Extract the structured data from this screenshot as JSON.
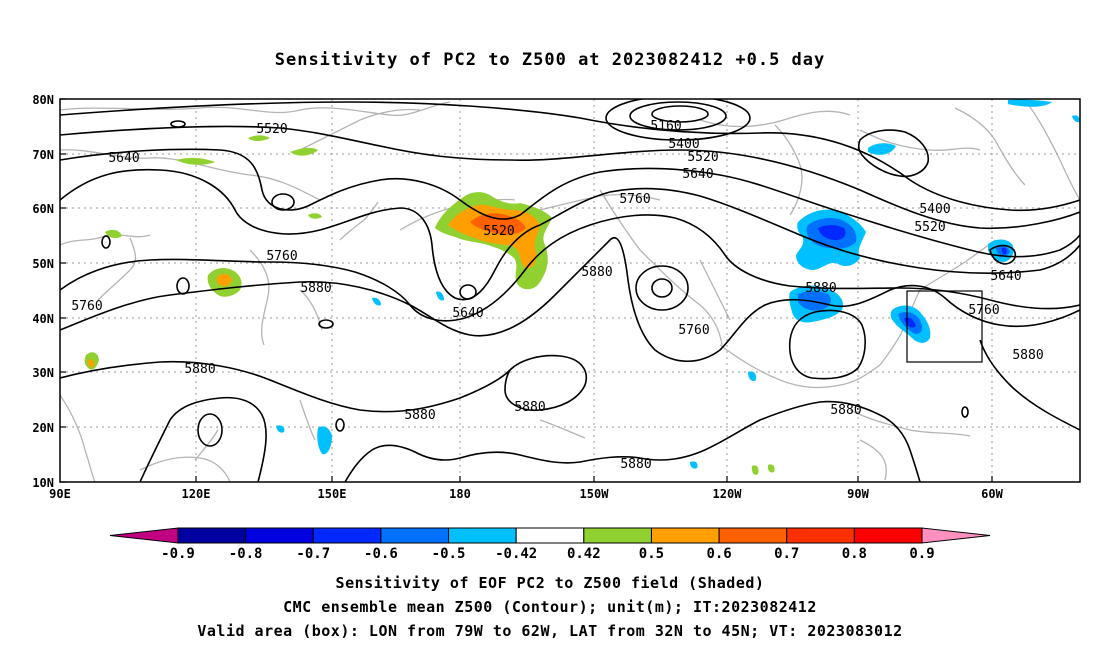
{
  "title": "Sensitivity of PC2 to Z500 at 2023082412 +0.5 day",
  "map": {
    "lat_labels": [
      "80N",
      "70N",
      "60N",
      "50N",
      "40N",
      "30N",
      "20N",
      "10N"
    ],
    "lon_labels": [
      "90E",
      "120E",
      "150E",
      "180",
      "150W",
      "120W",
      "90W",
      "60W"
    ],
    "contour_labels": [
      {
        "text": "5160"
      },
      {
        "text": "5400"
      },
      {
        "text": "5520"
      },
      {
        "text": "5520"
      },
      {
        "text": "5640"
      },
      {
        "text": "5640"
      },
      {
        "text": "5760"
      },
      {
        "text": "5760"
      },
      {
        "text": "5880"
      },
      {
        "text": "5880"
      },
      {
        "text": "5640"
      },
      {
        "text": "5520"
      },
      {
        "text": "5760"
      },
      {
        "text": "5880"
      },
      {
        "text": "5760"
      },
      {
        "text": "5880"
      },
      {
        "text": "5400"
      },
      {
        "text": "5520"
      },
      {
        "text": "5640"
      },
      {
        "text": "5760"
      },
      {
        "text": "5880"
      },
      {
        "text": "5880"
      },
      {
        "text": "5880"
      },
      {
        "text": "5880"
      }
    ],
    "valid_box": {
      "lon_from": "79W",
      "lon_to": "62W",
      "lat_from": "32N",
      "lat_to": "45N"
    }
  },
  "colorbar": {
    "labels": [
      "-0.9",
      "-0.8",
      "-0.7",
      "-0.6",
      "-0.5",
      "-0.42",
      "0.42",
      "0.5",
      "0.6",
      "0.7",
      "0.8",
      "0.9"
    ],
    "colors": [
      "#c00080",
      "#0000a0",
      "#0000e0",
      "#0028ff",
      "#0070ff",
      "#00c0ff",
      "#ffffff",
      "#90d030",
      "#ffa000",
      "#ff6000",
      "#ff3000",
      "#ff0000",
      "#ff90c0"
    ]
  },
  "captions": [
    "Sensitivity of EOF PC2 to Z500 field (Shaded)",
    "CMC ensemble mean Z500 (Contour); unit(m); IT:2023082412",
    "Valid area (box): LON from 79W to 62W, LAT from 32N to 45N; VT: 2023083012"
  ]
}
